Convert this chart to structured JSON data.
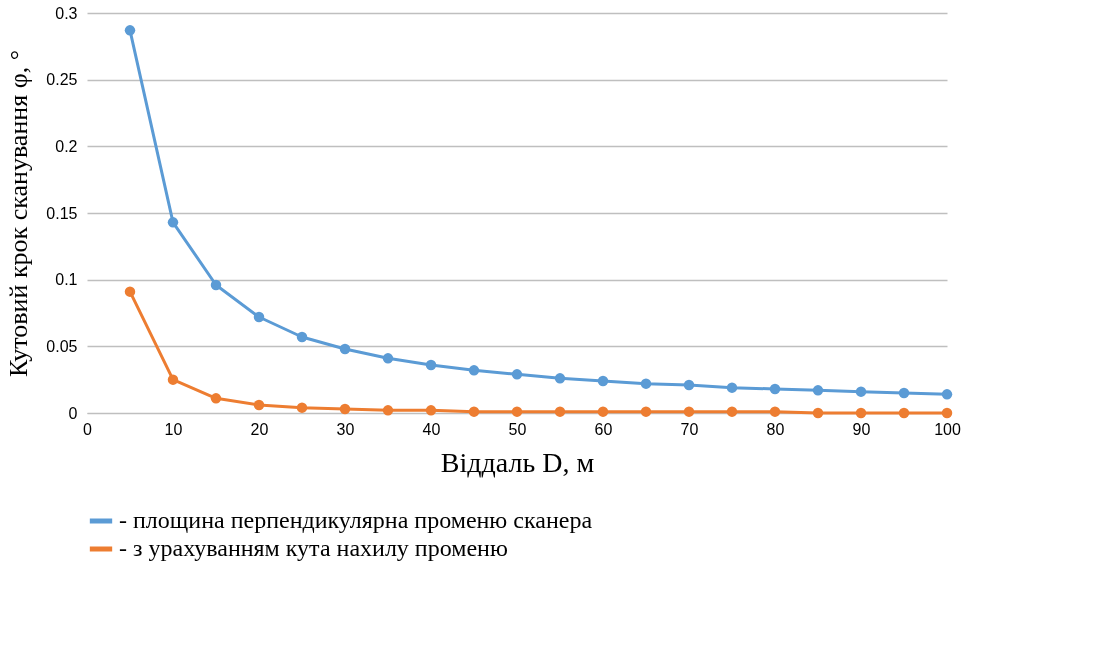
{
  "chart_data": {
    "type": "line",
    "xlabel": "Віддаль D, м",
    "ylabel": "Кутовий крок сканування φ, °",
    "x": [
      5,
      10,
      15,
      20,
      25,
      30,
      35,
      40,
      45,
      50,
      55,
      60,
      65,
      70,
      75,
      80,
      85,
      90,
      95,
      100
    ],
    "series": [
      {
        "name": "- площина перпендикулярна променю сканера",
        "color": "#5b9bd5",
        "values": [
          0.287,
          0.143,
          0.096,
          0.072,
          0.057,
          0.048,
          0.041,
          0.036,
          0.032,
          0.029,
          0.026,
          0.024,
          0.022,
          0.021,
          0.019,
          0.018,
          0.017,
          0.016,
          0.015,
          0.014
        ]
      },
      {
        "name": "- з урахуванням кута нахилу променю",
        "color": "#ed7d31",
        "values": [
          0.091,
          0.025,
          0.011,
          0.006,
          0.004,
          0.003,
          0.002,
          0.002,
          0.001,
          0.001,
          0.001,
          0.001,
          0.001,
          0.001,
          0.001,
          0.001,
          0.0,
          0.0,
          0.0,
          0.0
        ]
      }
    ],
    "xlim": [
      0,
      100
    ],
    "xticks": [
      0,
      10,
      20,
      30,
      40,
      50,
      60,
      70,
      80,
      90,
      100
    ],
    "ylim": [
      0,
      0.3
    ],
    "yticks": [
      0,
      0.05,
      0.1,
      0.15,
      0.2,
      0.25,
      0.3
    ],
    "grid": "y",
    "legend": "bottom",
    "marker": "circle",
    "line_style": "solid"
  }
}
